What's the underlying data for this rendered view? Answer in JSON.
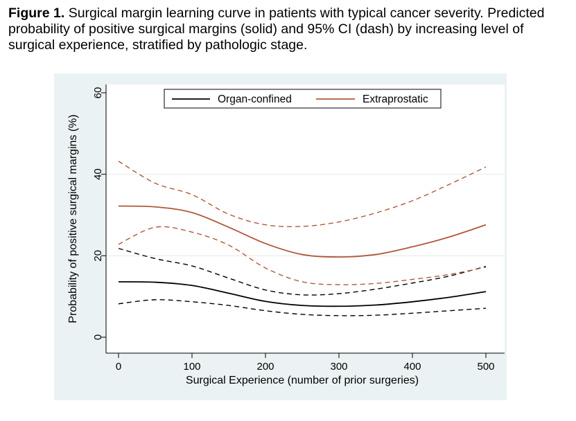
{
  "caption": {
    "label": "Figure 1.",
    "text": "Surgical margin learning curve in patients with typical cancer severity. Predicted probability of positive surgical margins (solid) and 95% CI (dash) by increasing level of surgical experience, stratified by pathologic stage."
  },
  "colors": {
    "panel_bg": "#eaf2f3",
    "organ_confined": "#000000",
    "extraprostatic": "#b0573a",
    "grid": "#e8e8e8"
  },
  "chart_data": {
    "type": "line",
    "xlabel": "Surgical Experience (number of prior surgeries)",
    "ylabel": "Probability of positive surgical margins (%)",
    "xlim": [
      0,
      500
    ],
    "ylim": [
      0,
      60
    ],
    "xticks": [
      0,
      100,
      200,
      300,
      400,
      500
    ],
    "yticks": [
      0,
      20,
      40,
      60
    ],
    "grid": "horizontal",
    "legend_position": "top",
    "x": [
      0,
      50,
      100,
      150,
      200,
      250,
      300,
      350,
      400,
      450,
      500
    ],
    "series": [
      {
        "name": "Organ-confined",
        "style": "solid",
        "color": "#000000",
        "values": [
          13.6,
          13.5,
          12.7,
          10.8,
          8.8,
          7.8,
          7.6,
          7.9,
          8.7,
          9.8,
          11.2
        ]
      },
      {
        "name": "",
        "style": "dashed",
        "color": "#000000",
        "values": [
          21.8,
          19.3,
          17.5,
          14.5,
          11.6,
          10.4,
          10.7,
          11.8,
          13.3,
          15.0,
          17.4
        ]
      },
      {
        "name": "",
        "style": "dashed",
        "color": "#000000",
        "values": [
          8.2,
          9.2,
          8.7,
          7.8,
          6.5,
          5.6,
          5.3,
          5.4,
          5.9,
          6.5,
          7.1
        ]
      },
      {
        "name": "Extraprostatic",
        "style": "solid",
        "color": "#b0573a",
        "values": [
          32.2,
          32.0,
          30.6,
          27.0,
          23.0,
          20.3,
          19.7,
          20.3,
          22.2,
          24.6,
          27.6
        ]
      },
      {
        "name": "",
        "style": "dashed",
        "color": "#b0573a",
        "values": [
          43.2,
          37.8,
          35.0,
          30.2,
          27.6,
          27.2,
          28.3,
          30.5,
          33.5,
          37.5,
          41.8
        ]
      },
      {
        "name": "",
        "style": "dashed",
        "color": "#b0573a",
        "values": [
          22.8,
          27.0,
          25.8,
          22.6,
          17.0,
          13.6,
          12.9,
          13.2,
          14.2,
          15.4,
          17.2
        ]
      }
    ]
  }
}
